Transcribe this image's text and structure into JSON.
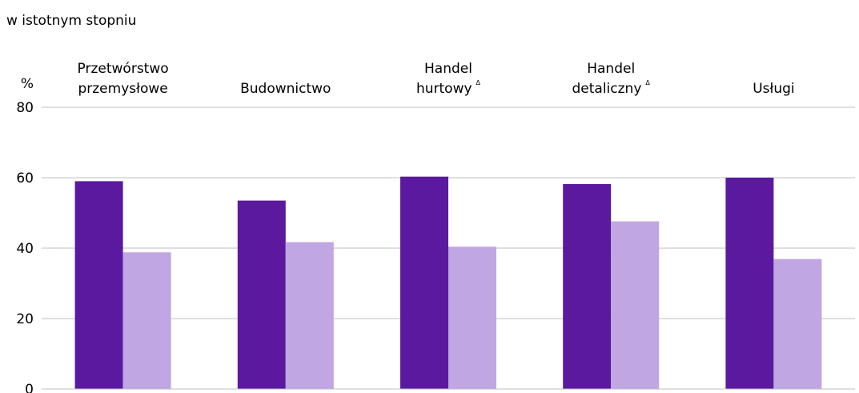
{
  "chart_data": {
    "type": "bar",
    "subtitle": "w istotnym stopniu",
    "ylabel": "%",
    "ylim": [
      0,
      80
    ],
    "yticks": [
      0,
      20,
      40,
      60,
      80
    ],
    "grid": true,
    "categories": [
      {
        "line1": "Przetwórstwo",
        "line2": "przemysłowe",
        "mark": ""
      },
      {
        "line1": "Budownictwo",
        "line2": "",
        "mark": ""
      },
      {
        "line1": "Handel",
        "line2": "hurtowy",
        "mark": "Δ"
      },
      {
        "line1": "Handel",
        "line2": "detaliczny",
        "mark": "Δ"
      },
      {
        "line1": "Usługi",
        "line2": "",
        "mark": ""
      }
    ],
    "series": [
      {
        "values": [
          59,
          53.5,
          60.3,
          58.2,
          60
        ]
      },
      {
        "values": [
          38.8,
          41.7,
          40.4,
          47.6,
          36.9
        ]
      }
    ],
    "colors": [
      "#5b19a0",
      "#c0a6e3"
    ],
    "grid_color": "#bfbfbf"
  }
}
